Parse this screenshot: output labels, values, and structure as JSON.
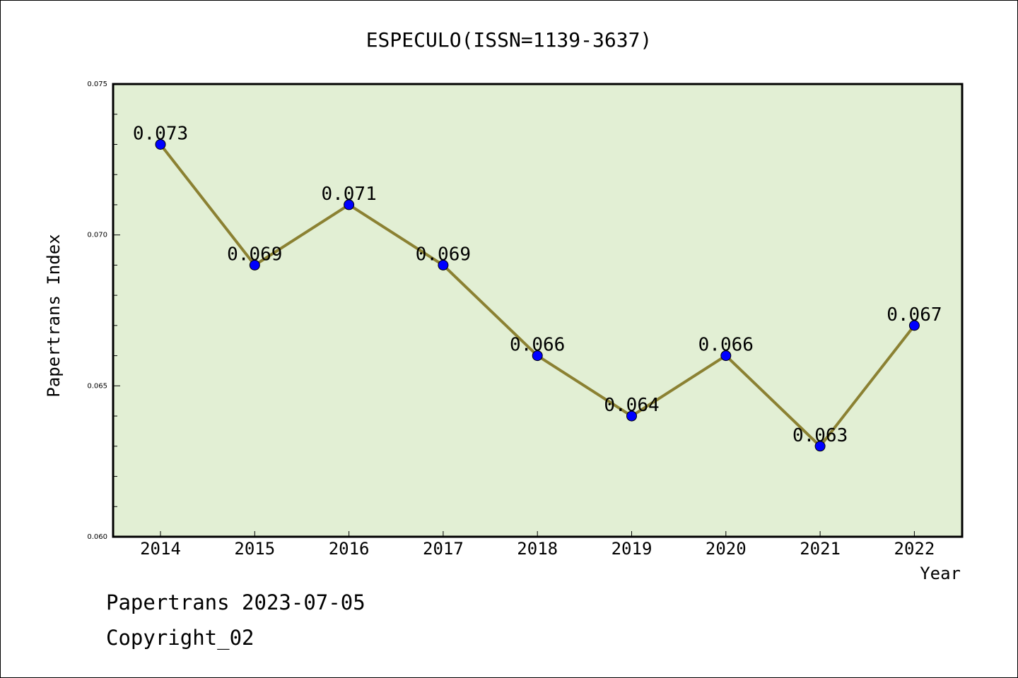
{
  "chart_data": {
    "type": "line",
    "title": "ESPECULO(ISSN=1139-3637)",
    "xlabel": "Year",
    "ylabel": "Papertrans Index",
    "categories": [
      "2014",
      "2015",
      "2016",
      "2017",
      "2018",
      "2019",
      "2020",
      "2021",
      "2022"
    ],
    "series": [
      {
        "values": [
          0.073,
          0.069,
          0.071,
          0.069,
          0.066,
          0.064,
          0.066,
          0.063,
          0.067
        ],
        "data_labels": [
          "0.073",
          "0.069",
          "0.071",
          "0.069",
          "0.066",
          "0.064",
          "0.066",
          "0.063",
          "0.067"
        ]
      }
    ],
    "ylim": [
      0.06,
      0.075
    ],
    "yticks": [
      "0.060",
      "0.065",
      "0.070",
      "0.075"
    ],
    "grid": false,
    "colors": {
      "plot_background": "#e2efd4",
      "line": "#8b8132",
      "marker": "#0000ff"
    }
  },
  "footer": {
    "line1": "Papertrans 2023-07-05",
    "line2": "Copyright_02"
  }
}
